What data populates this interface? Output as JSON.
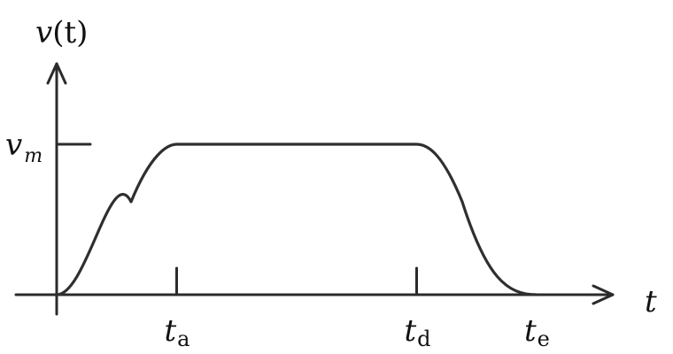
{
  "chart_data": {
    "type": "line",
    "title": "",
    "xlabel": "t",
    "ylabel": "v(t)",
    "ylabel_parts": {
      "main": "v",
      "arg": "(t)"
    },
    "y_tick": {
      "main": "v",
      "sub": "m"
    },
    "x_ticks": [
      {
        "main": "t",
        "sub": "a",
        "value": 1
      },
      {
        "main": "t",
        "sub": "d",
        "value": 3
      },
      {
        "main": "t",
        "sub": "e",
        "value": 4
      }
    ],
    "x": [
      0,
      1,
      3,
      4
    ],
    "y": [
      0,
      1,
      1,
      0
    ],
    "xlim": [
      0,
      4.9
    ],
    "ylim": [
      0,
      1.6
    ],
    "grid": false,
    "legend": "none"
  }
}
